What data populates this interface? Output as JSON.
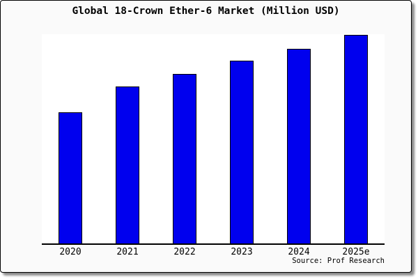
{
  "window": {
    "card_background": "#fafafa",
    "plot_background": "#ffffff",
    "page_background": "#ffffff",
    "border_color": "#000000",
    "shadow_color": "#8a8a8a",
    "text_color": "#000000"
  },
  "chart_data": {
    "type": "bar",
    "title": "Global 18-Crown Ether-6 Market (Million USD)",
    "categories": [
      "2020",
      "2021",
      "2022",
      "2023",
      "2024",
      "2025e"
    ],
    "values": [
      62.8,
      75.1,
      81.4,
      87.7,
      93.4,
      100
    ],
    "values_note": "y-axis is unlabeled; values are bar heights relative to 2025e = 100",
    "xlabel": "",
    "ylabel": "",
    "ylim": [
      0,
      100.3
    ],
    "grid": false,
    "legend": false,
    "bar_color": "#0000ee",
    "bar_border_color": "#000000",
    "source": "Source: Prof Research"
  }
}
